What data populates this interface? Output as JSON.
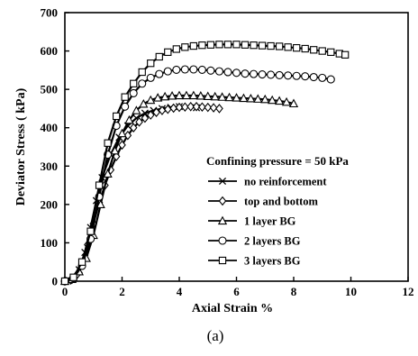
{
  "chart_data": {
    "type": "line",
    "title": "",
    "xlabel": "Axial Strain %",
    "ylabel": "Deviator Stress ( kPa)",
    "xlim": [
      0,
      12
    ],
    "ylim": [
      0,
      700
    ],
    "xticks": [
      0,
      2,
      4,
      6,
      8,
      10,
      12
    ],
    "yticks": [
      0,
      100,
      200,
      300,
      400,
      500,
      600,
      700
    ],
    "grid": false,
    "legend_title": "Confining pressure = 50 kPa",
    "legend_position": "center-right",
    "caption": "(a)",
    "series": [
      {
        "name": "no reinforcement",
        "marker": "x",
        "x": [
          0,
          0.15,
          0.3,
          0.5,
          0.7,
          0.9,
          1.1,
          1.3,
          1.6,
          1.9,
          2.2,
          2.5,
          2.8,
          3.1,
          3.4,
          3.7,
          4.0,
          4.3,
          4.6
        ],
        "y": [
          0,
          2,
          8,
          30,
          75,
          140,
          210,
          270,
          330,
          375,
          405,
          425,
          438,
          445,
          450,
          453,
          455,
          455,
          452
        ]
      },
      {
        "name": "top and bottom",
        "marker": "diamond",
        "x": [
          0,
          0.2,
          0.4,
          0.6,
          0.8,
          1.0,
          1.2,
          1.4,
          1.6,
          1.8,
          2.0,
          2.2,
          2.4,
          2.6,
          2.8,
          3.0,
          3.2,
          3.4,
          3.6,
          3.8,
          4.0,
          4.2,
          4.4,
          4.6,
          4.8,
          5.0,
          5.2,
          5.4
        ],
        "y": [
          0,
          3,
          15,
          45,
          95,
          150,
          205,
          250,
          290,
          325,
          355,
          380,
          400,
          415,
          425,
          433,
          440,
          445,
          448,
          451,
          453,
          454,
          455,
          455,
          454,
          453,
          452,
          450
        ]
      },
      {
        "name": "1 layer BG",
        "marker": "triangle",
        "x": [
          0,
          0.25,
          0.5,
          0.75,
          1.0,
          1.25,
          1.5,
          1.75,
          2.0,
          2.25,
          2.5,
          2.75,
          3.0,
          3.25,
          3.5,
          3.75,
          4.0,
          4.25,
          4.5,
          4.75,
          5.0,
          5.25,
          5.5,
          5.75,
          6.0,
          6.25,
          6.5,
          6.75,
          7.0,
          7.25,
          7.5,
          7.75,
          8.0
        ],
        "y": [
          0,
          5,
          25,
          60,
          120,
          200,
          280,
          340,
          385,
          420,
          445,
          462,
          472,
          478,
          481,
          483,
          484,
          484,
          484,
          483,
          482,
          481,
          480,
          479,
          478,
          477,
          476,
          475,
          474,
          472,
          470,
          467,
          463
        ]
      },
      {
        "name": "2 layers BG",
        "marker": "circle",
        "x": [
          0,
          0.3,
          0.6,
          0.9,
          1.2,
          1.5,
          1.8,
          2.1,
          2.4,
          2.7,
          3.0,
          3.3,
          3.6,
          3.9,
          4.2,
          4.5,
          4.8,
          5.1,
          5.4,
          5.7,
          6.0,
          6.3,
          6.6,
          6.9,
          7.2,
          7.5,
          7.8,
          8.1,
          8.4,
          8.7,
          9.0,
          9.3
        ],
        "y": [
          0,
          8,
          40,
          110,
          220,
          330,
          405,
          455,
          490,
          515,
          530,
          540,
          547,
          551,
          552,
          552,
          551,
          549,
          547,
          545,
          543,
          541,
          540,
          539,
          538,
          537,
          536,
          535,
          534,
          532,
          530,
          526
        ]
      },
      {
        "name": "3 layers BG",
        "marker": "square",
        "x": [
          0,
          0.3,
          0.6,
          0.9,
          1.2,
          1.5,
          1.8,
          2.1,
          2.4,
          2.7,
          3.0,
          3.3,
          3.6,
          3.9,
          4.2,
          4.5,
          4.8,
          5.1,
          5.4,
          5.7,
          6.0,
          6.3,
          6.6,
          6.9,
          7.2,
          7.5,
          7.8,
          8.1,
          8.4,
          8.7,
          9.0,
          9.3,
          9.6,
          9.8
        ],
        "y": [
          0,
          10,
          50,
          130,
          250,
          360,
          430,
          480,
          515,
          545,
          568,
          585,
          597,
          605,
          610,
          613,
          615,
          616,
          617,
          617,
          617,
          616,
          615,
          614,
          613,
          612,
          610,
          608,
          606,
          603,
          600,
          597,
          593,
          590
        ]
      }
    ]
  }
}
